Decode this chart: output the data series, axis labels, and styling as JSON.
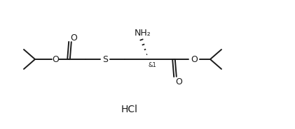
{
  "background": "#ffffff",
  "line_color": "#1a1a1a",
  "line_width": 1.4,
  "font_size": 9,
  "hcl_text": "HCl",
  "stereo_label": "&1",
  "nh2_label": "NH₂",
  "s_label": "S",
  "o_label": "O"
}
